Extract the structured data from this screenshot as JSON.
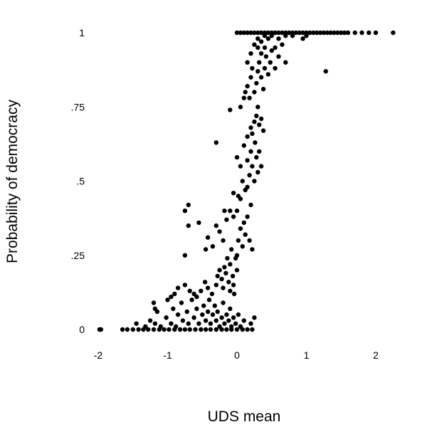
{
  "chart_data": {
    "type": "scatter",
    "title": "",
    "xlabel": "UDS mean",
    "ylabel": "Probability of democracy",
    "xlim": [
      -2.15,
      2.3
    ],
    "ylim": [
      -0.03,
      1.03
    ],
    "x_ticks": [
      {
        "value": -2,
        "label": "-2"
      },
      {
        "value": -1,
        "label": "-1"
      },
      {
        "value": 0,
        "label": "0"
      },
      {
        "value": 1,
        "label": "1"
      },
      {
        "value": 2,
        "label": "2"
      }
    ],
    "y_ticks": [
      {
        "value": 0,
        "label": "0"
      },
      {
        "value": 0.25,
        "label": ".25"
      },
      {
        "value": 0.5,
        "label": ".5"
      },
      {
        "value": 0.75,
        "label": ".75"
      },
      {
        "value": 1,
        "label": "1"
      }
    ],
    "grid": false,
    "marker_color": "#000000",
    "series": [
      {
        "points": [
          [
            -1.98,
            0.0
          ],
          [
            -1.96,
            0.0
          ],
          [
            -1.65,
            0.0
          ],
          [
            -1.58,
            0.0
          ],
          [
            -1.5,
            0.0
          ],
          [
            -1.42,
            0.0
          ],
          [
            -1.35,
            0.0
          ],
          [
            -1.28,
            0.0
          ],
          [
            -1.2,
            0.0
          ],
          [
            -1.12,
            0.0
          ],
          [
            -1.05,
            0.0
          ],
          [
            -0.98,
            0.0
          ],
          [
            -0.9,
            0.0
          ],
          [
            -0.82,
            0.0
          ],
          [
            -0.75,
            0.0
          ],
          [
            -0.68,
            0.0
          ],
          [
            -0.6,
            0.0
          ],
          [
            -0.52,
            0.0
          ],
          [
            -0.45,
            0.0
          ],
          [
            -0.38,
            0.0
          ],
          [
            -0.3,
            0.0
          ],
          [
            -0.22,
            0.0
          ],
          [
            -0.15,
            0.0
          ],
          [
            -0.08,
            0.0
          ],
          [
            0.0,
            0.0
          ],
          [
            0.08,
            0.0
          ],
          [
            0.15,
            0.0
          ],
          [
            0.22,
            0.0
          ],
          [
            -1.45,
            0.02
          ],
          [
            -1.32,
            0.01
          ],
          [
            -1.25,
            0.03
          ],
          [
            -1.18,
            0.02
          ],
          [
            -1.15,
            0.06
          ],
          [
            -1.1,
            0.01
          ],
          [
            -1.02,
            0.04
          ],
          [
            -0.95,
            0.02
          ],
          [
            -0.92,
            0.07
          ],
          [
            -0.88,
            0.01
          ],
          [
            -0.85,
            0.05
          ],
          [
            -0.8,
            0.09
          ],
          [
            -0.78,
            0.03
          ],
          [
            -0.72,
            0.06
          ],
          [
            -0.7,
            0.02
          ],
          [
            -0.65,
            0.1
          ],
          [
            -0.62,
            0.04
          ],
          [
            -0.58,
            0.07
          ],
          [
            -0.55,
            0.02
          ],
          [
            -0.5,
            0.05
          ],
          [
            -0.48,
            0.08
          ],
          [
            -0.45,
            0.03
          ],
          [
            -0.42,
            0.06
          ],
          [
            -0.4,
            0.1
          ],
          [
            -0.38,
            0.02
          ],
          [
            -0.35,
            0.05
          ],
          [
            -0.32,
            0.08
          ],
          [
            -0.3,
            0.03
          ],
          [
            -0.28,
            0.06
          ],
          [
            -0.25,
            0.01
          ],
          [
            -0.22,
            0.04
          ],
          [
            -0.2,
            0.09
          ],
          [
            -0.18,
            0.02
          ],
          [
            -0.15,
            0.05
          ],
          [
            -0.12,
            0.03
          ],
          [
            -0.1,
            0.07
          ],
          [
            -0.08,
            0.01
          ],
          [
            -0.05,
            0.04
          ],
          [
            -0.02,
            0.02
          ],
          [
            0.02,
            0.05
          ],
          [
            0.05,
            0.01
          ],
          [
            0.1,
            0.03
          ],
          [
            0.2,
            0.02
          ],
          [
            0.25,
            0.04
          ],
          [
            -1.2,
            0.09
          ],
          [
            -1.18,
            0.07
          ],
          [
            -1.0,
            0.1
          ],
          [
            -0.95,
            0.11
          ],
          [
            -0.9,
            0.12
          ],
          [
            -0.85,
            0.14
          ],
          [
            -0.75,
            0.15
          ],
          [
            -0.68,
            0.13
          ],
          [
            -0.62,
            0.12
          ],
          [
            -0.58,
            0.11
          ],
          [
            -0.52,
            0.13
          ],
          [
            -0.46,
            0.16
          ],
          [
            -0.42,
            0.14
          ],
          [
            -0.36,
            0.12
          ],
          [
            -0.3,
            0.15
          ],
          [
            -0.28,
            0.18
          ],
          [
            -0.25,
            0.2
          ],
          [
            -0.22,
            0.17
          ],
          [
            -0.2,
            0.14
          ],
          [
            -0.18,
            0.21
          ],
          [
            -0.16,
            0.19
          ],
          [
            -0.14,
            0.24
          ],
          [
            -0.12,
            0.16
          ],
          [
            -0.1,
            0.22
          ],
          [
            -0.08,
            0.27
          ],
          [
            -0.06,
            0.18
          ],
          [
            -0.04,
            0.12
          ],
          [
            -0.02,
            0.24
          ],
          [
            0.0,
            0.2
          ],
          [
            -0.1,
            0.13
          ],
          [
            -0.05,
            0.15
          ],
          [
            -0.75,
            0.25
          ],
          [
            -0.45,
            0.27
          ],
          [
            -0.7,
            0.35
          ],
          [
            -0.75,
            0.4
          ],
          [
            -0.7,
            0.42
          ],
          [
            -0.55,
            0.36
          ],
          [
            -0.42,
            0.31
          ],
          [
            -0.3,
            0.35
          ],
          [
            -0.35,
            0.28
          ],
          [
            -0.25,
            0.33
          ],
          [
            -0.2,
            0.3
          ],
          [
            -0.15,
            0.37
          ],
          [
            -0.18,
            0.4
          ],
          [
            0.0,
            0.25
          ],
          [
            0.02,
            0.3
          ],
          [
            0.05,
            0.34
          ],
          [
            0.08,
            0.28
          ],
          [
            0.1,
            0.36
          ],
          [
            0.12,
            0.32
          ],
          [
            0.15,
            0.38
          ],
          [
            0.18,
            0.3
          ],
          [
            0.2,
            0.42
          ],
          [
            0.22,
            0.27
          ],
          [
            0.05,
            0.44
          ],
          [
            0.0,
            0.4
          ],
          [
            -0.05,
            0.46
          ],
          [
            0.15,
            0.48
          ],
          [
            -0.1,
            0.4
          ],
          [
            -0.05,
            0.38
          ],
          [
            0.02,
            0.45
          ],
          [
            0.08,
            0.5
          ],
          [
            0.12,
            0.47
          ],
          [
            0.18,
            0.52
          ],
          [
            0.22,
            0.55
          ],
          [
            0.25,
            0.5
          ],
          [
            0.28,
            0.58
          ],
          [
            0.3,
            0.53
          ],
          [
            0.32,
            0.6
          ],
          [
            0.15,
            0.57
          ],
          [
            0.1,
            0.62
          ],
          [
            0.05,
            0.55
          ],
          [
            0.2,
            0.6
          ],
          [
            0.35,
            0.55
          ],
          [
            -0.3,
            0.63
          ],
          [
            0.0,
            0.58
          ],
          [
            0.15,
            0.65
          ],
          [
            0.2,
            0.68
          ],
          [
            0.25,
            0.7
          ],
          [
            0.22,
            0.66
          ],
          [
            0.28,
            0.72
          ],
          [
            0.3,
            0.75
          ],
          [
            0.32,
            0.69
          ],
          [
            0.35,
            0.71
          ],
          [
            0.38,
            0.67
          ],
          [
            0.26,
            0.63
          ],
          [
            -0.1,
            0.74
          ],
          [
            0.05,
            0.75
          ],
          [
            0.1,
            0.78
          ],
          [
            0.12,
            0.8
          ],
          [
            0.15,
            0.82
          ],
          [
            0.18,
            0.78
          ],
          [
            0.2,
            0.85
          ],
          [
            0.22,
            0.88
          ],
          [
            0.25,
            0.8
          ],
          [
            0.28,
            0.83
          ],
          [
            0.3,
            0.87
          ],
          [
            0.32,
            0.9
          ],
          [
            0.35,
            0.85
          ],
          [
            0.38,
            0.81
          ],
          [
            0.4,
            0.88
          ],
          [
            0.42,
            0.92
          ],
          [
            0.45,
            0.86
          ],
          [
            0.48,
            0.9
          ],
          [
            0.5,
            0.94
          ],
          [
            0.55,
            0.88
          ],
          [
            0.6,
            0.92
          ],
          [
            0.65,
            0.96
          ],
          [
            0.7,
            0.9
          ],
          [
            0.15,
            0.9
          ],
          [
            0.2,
            0.93
          ],
          [
            0.3,
            0.95
          ],
          [
            0.35,
            0.97
          ],
          [
            0.4,
            0.95
          ],
          [
            0.45,
            0.98
          ],
          [
            0.25,
            0.96
          ],
          [
            0.35,
            0.93
          ],
          [
            0.55,
            0.95
          ],
          [
            1.28,
            0.87
          ],
          [
            0.0,
            1.0
          ],
          [
            0.05,
            1.0
          ],
          [
            0.1,
            1.0
          ],
          [
            0.15,
            1.0
          ],
          [
            0.2,
            1.0
          ],
          [
            0.25,
            1.0
          ],
          [
            0.3,
            1.0
          ],
          [
            0.35,
            1.0
          ],
          [
            0.4,
            1.0
          ],
          [
            0.45,
            1.0
          ],
          [
            0.5,
            1.0
          ],
          [
            0.55,
            1.0
          ],
          [
            0.6,
            1.0
          ],
          [
            0.65,
            1.0
          ],
          [
            0.7,
            1.0
          ],
          [
            0.75,
            1.0
          ],
          [
            0.8,
            1.0
          ],
          [
            0.85,
            1.0
          ],
          [
            0.9,
            1.0
          ],
          [
            0.95,
            1.0
          ],
          [
            1.0,
            1.0
          ],
          [
            1.05,
            1.0
          ],
          [
            1.1,
            1.0
          ],
          [
            1.15,
            1.0
          ],
          [
            1.2,
            1.0
          ],
          [
            1.25,
            1.0
          ],
          [
            1.3,
            1.0
          ],
          [
            1.35,
            1.0
          ],
          [
            1.4,
            1.0
          ],
          [
            1.45,
            1.0
          ],
          [
            1.5,
            1.0
          ],
          [
            1.55,
            1.0
          ],
          [
            1.6,
            1.0
          ],
          [
            1.7,
            1.0
          ],
          [
            1.8,
            1.0
          ],
          [
            1.9,
            1.0
          ],
          [
            2.0,
            1.0
          ],
          [
            2.25,
            1.0
          ],
          [
            0.3,
            0.98
          ],
          [
            0.4,
            0.99
          ],
          [
            0.5,
            0.99
          ],
          [
            0.6,
            0.98
          ],
          [
            0.7,
            0.99
          ],
          [
            0.8,
            0.99
          ],
          [
            1.0,
            0.99
          ],
          [
            0.95,
            0.98
          ]
        ]
      }
    ]
  }
}
